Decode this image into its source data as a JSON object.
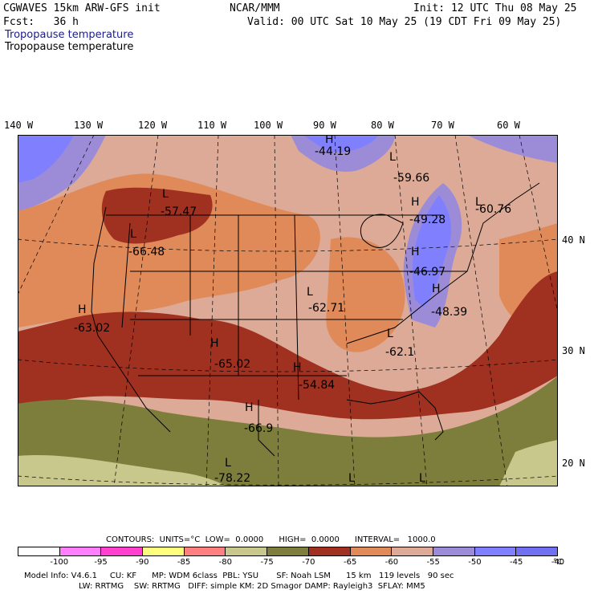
{
  "header": {
    "model_line": "CGWAVES 15km ARW-GFS init",
    "org": "NCAR/MMM",
    "init": "Init: 12 UTC Thu 08 May 25",
    "fcst": "Fcst:   36 h",
    "valid": "Valid: 00 UTC Sat 10 May 25 (19 CDT Fri 09 May 25)",
    "field_title_blue": "Tropopause temperature",
    "field_title_black": "Tropopause temperature"
  },
  "longitude_labels": [
    "140 W",
    "130 W",
    "120 W",
    "110 W",
    "100 W",
    "90 W",
    "80 W",
    "70 W",
    "60 W"
  ],
  "latitude_labels": [
    "40 N",
    "30 N",
    "20 N"
  ],
  "map_labels": [
    {
      "mark": "H",
      "value": "-44.19"
    },
    {
      "mark": "L",
      "value": "-59.66"
    },
    {
      "mark": "L",
      "value": "-57.47"
    },
    {
      "mark": "H",
      "value": "-49.28"
    },
    {
      "mark": "L",
      "value": "-60.76"
    },
    {
      "mark": "L",
      "value": "-66.48"
    },
    {
      "mark": "H",
      "value": "-46.97"
    },
    {
      "mark": "L",
      "value": "-62.71"
    },
    {
      "mark": "H",
      "value": "-48.39"
    },
    {
      "mark": "H",
      "value": "-63.02"
    },
    {
      "mark": "L",
      "value": "-62.1"
    },
    {
      "mark": "H",
      "value": "-65.02"
    },
    {
      "mark": "H",
      "value": "-54.84"
    },
    {
      "mark": "H",
      "value": "-66.9"
    },
    {
      "mark": "L",
      "value": "-78.22"
    },
    {
      "mark": "L",
      "value": ""
    },
    {
      "mark": "L",
      "value": ""
    }
  ],
  "contours_line": "CONTOURS:  UNITS=°C  LOW=  0.0000      HIGH=  0.0000      INTERVAL=   1000.0",
  "legend": {
    "colors": [
      "#ffffff",
      "#ff7fff",
      "#ff3fd0",
      "#ffff7f",
      "#ff8080",
      "#c8c88c",
      "#7e7e3c",
      "#a03020",
      "#e08a5a",
      "#dcaa96",
      "#9c8cd8",
      "#8080ff",
      "#7070f0"
    ],
    "ticks": [
      "-100",
      "-95",
      "-90",
      "-85",
      "-80",
      "-75",
      "-70",
      "-65",
      "-60",
      "-55",
      "-50",
      "-45",
      "-40"
    ],
    "unit": "°C"
  },
  "model_info": {
    "line1": "Model Info: V4.6.1     CU: KF      MP: WDM 6class  PBL: YSU       SF: Noah LSM      15 km   119 levels   90 sec",
    "line2": "LW: RRTMG    SW: RRTMG   DIFF: simple KM: 2D Smagor DAMP: Rayleigh3  SFLAY: MM5"
  },
  "colors": {
    "tan_sky": "#dcaa96",
    "orange": "#e08a5a",
    "rust": "#a03020",
    "olive": "#7e7e3c",
    "khaki": "#c8c88c",
    "lavender": "#9c8cd8",
    "blue": "#8080ff"
  }
}
